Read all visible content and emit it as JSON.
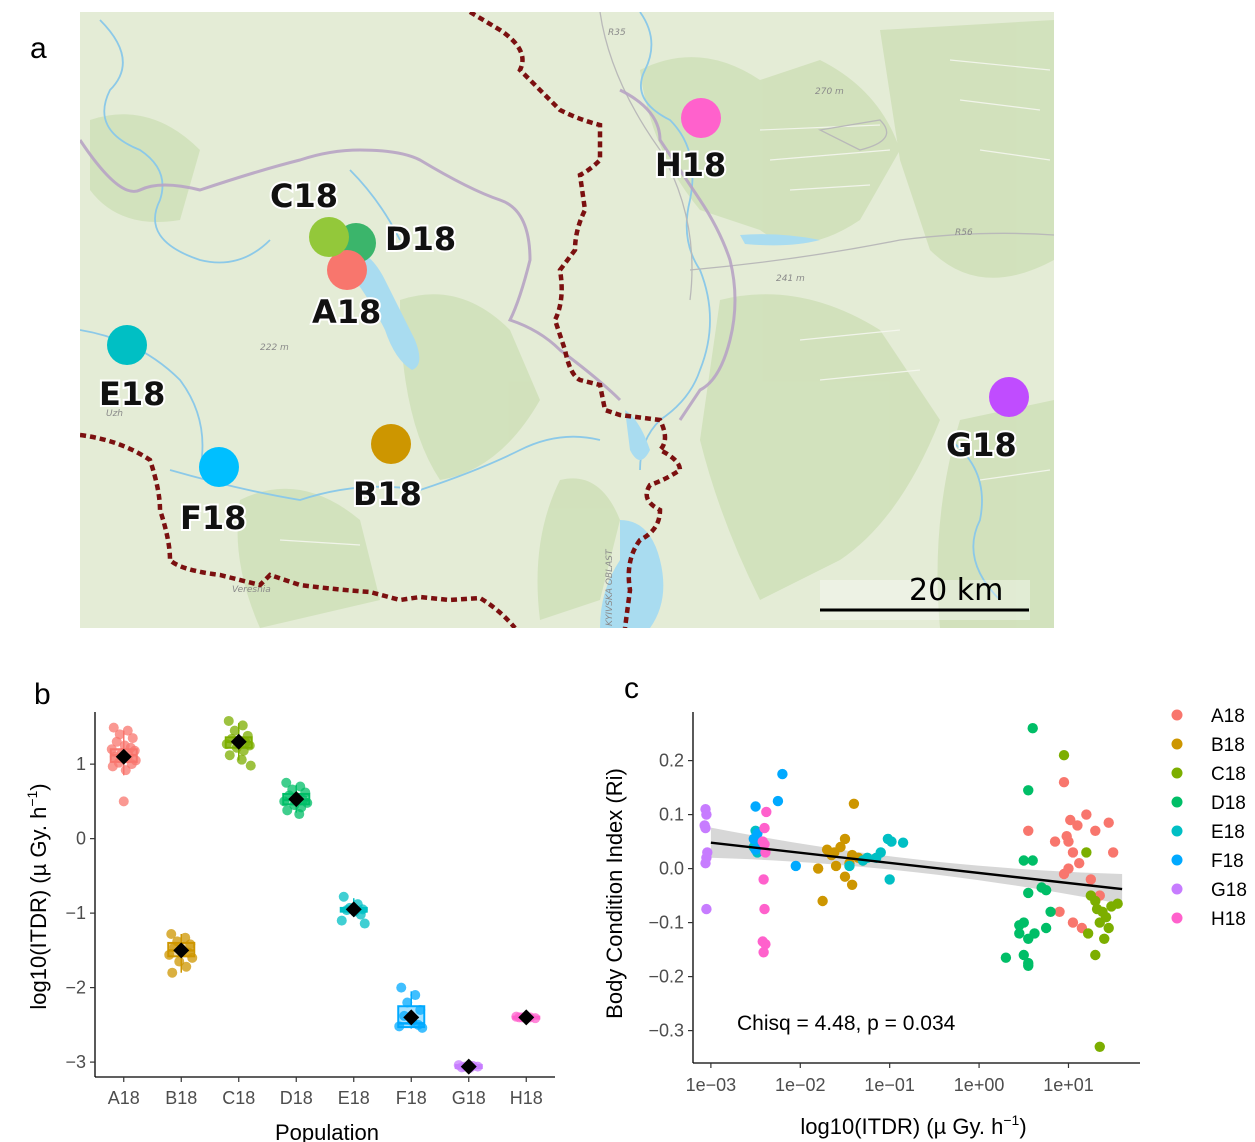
{
  "colors": {
    "A18": "#F8766D",
    "B18": "#CD9600",
    "C18": "#7CAE00",
    "D18": "#00BE67",
    "E18": "#00BFC4",
    "F18": "#00A9FF",
    "G18": "#C77CFF",
    "H18": "#FF61CC",
    "map_background": "#e4ecd6",
    "border": "#7b1010",
    "water": "#a9dcf0"
  },
  "panel_a": {
    "letter": "a",
    "sites": [
      {
        "name": "A18",
        "label": "A18"
      },
      {
        "name": "B18",
        "label": "B18"
      },
      {
        "name": "C18",
        "label": "C18"
      },
      {
        "name": "D18",
        "label": "D18"
      },
      {
        "name": "E18",
        "label": "E18"
      },
      {
        "name": "F18",
        "label": "F18"
      },
      {
        "name": "G18",
        "label": "G18"
      },
      {
        "name": "H18",
        "label": "H18"
      }
    ],
    "scale_bar_label": "20 km",
    "map_text": [
      "270 m",
      "241 m",
      "222 m",
      "R56",
      "R35",
      "Uzh",
      "Veresnia",
      "KYIVSKA OBLAST"
    ]
  },
  "chart_data": [
    {
      "type": "box",
      "panel": "b",
      "xlabel": "Population",
      "ylabel": "log10(ITDR) (µGy. h-1)",
      "ylabel_main": "log10(ITDR) (",
      "ylabel_unit": "µ Gy. h",
      "ylabel_sup": "−1",
      "ylabel_end": ")",
      "categories": [
        "A18",
        "B18",
        "C18",
        "D18",
        "E18",
        "F18",
        "G18",
        "H18"
      ],
      "ylim": [
        -3.2,
        1.7
      ],
      "yticks": [
        1,
        0,
        -1,
        -2,
        -3
      ],
      "ytick_labels": [
        "1",
        "0",
        "−1",
        "−2",
        "−3"
      ],
      "means": [
        1.1,
        -1.5,
        1.3,
        0.53,
        -0.95,
        -2.4,
        -3.06,
        -2.4
      ],
      "boxes": [
        {
          "q1": 1.03,
          "median": 1.12,
          "q3": 1.2,
          "lo": 0.85,
          "hi": 1.45
        },
        {
          "q1": -1.58,
          "median": -1.5,
          "q3": -1.4,
          "lo": -1.8,
          "hi": -1.28
        },
        {
          "q1": 1.22,
          "median": 1.3,
          "q3": 1.36,
          "lo": 1.05,
          "hi": 1.55
        },
        {
          "q1": 0.46,
          "median": 0.52,
          "q3": 0.6,
          "lo": 0.35,
          "hi": 0.72
        },
        {
          "q1": -0.98,
          "median": -0.95,
          "q3": -0.93,
          "lo": -1.05,
          "hi": -0.8
        },
        {
          "q1": -2.53,
          "median": -2.48,
          "q3": -2.25,
          "lo": -2.55,
          "hi": -2.05
        },
        {
          "q1": -3.08,
          "median": -3.06,
          "q3": -3.04,
          "lo": -3.09,
          "hi": -3.03
        },
        {
          "q1": -2.41,
          "median": -2.4,
          "q3": -2.39,
          "lo": -2.42,
          "hi": -2.38
        }
      ],
      "points": [
        [
          1.49,
          1.45,
          1.4,
          1.35,
          1.3,
          1.25,
          1.22,
          1.2,
          1.18,
          1.15,
          1.12,
          1.1,
          1.08,
          1.05,
          1.02,
          1.0,
          0.97,
          0.92,
          0.5
        ],
        [
          -1.28,
          -1.33,
          -1.38,
          -1.42,
          -1.46,
          -1.5,
          -1.53,
          -1.56,
          -1.6,
          -1.65,
          -1.72,
          -1.8
        ],
        [
          1.58,
          1.52,
          1.45,
          1.38,
          1.34,
          1.31,
          1.29,
          1.27,
          1.25,
          1.22,
          1.18,
          1.12,
          1.06,
          0.98
        ],
        [
          0.75,
          0.7,
          0.66,
          0.62,
          0.58,
          0.55,
          0.52,
          0.5,
          0.48,
          0.45,
          0.42,
          0.38,
          0.33
        ],
        [
          -0.78,
          -0.88,
          -0.93,
          -0.95,
          -0.96,
          -0.98,
          -1.02,
          -1.1,
          -1.14
        ],
        [
          -2.0,
          -2.1,
          -2.2,
          -2.3,
          -2.38,
          -2.45,
          -2.5,
          -2.52,
          -2.54
        ],
        [
          -3.04,
          -3.05,
          -3.06,
          -3.06,
          -3.07,
          -3.08
        ],
        [
          -2.39,
          -2.4,
          -2.4,
          -2.41,
          -2.4
        ]
      ],
      "grid": false
    },
    {
      "type": "scatter",
      "panel": "c",
      "xlabel": "log10(ITDR) (µGy. h-1)",
      "xlabel_main": "log10(ITDR) (",
      "xlabel_unit": "µ Gy. h",
      "xlabel_sup": "−1",
      "xlabel_end": ")",
      "ylabel": "Body Condition Index (Ri)",
      "x_scale": "log10",
      "xlim_log10": [
        -3.2,
        1.8
      ],
      "ylim": [
        -0.36,
        0.29
      ],
      "xticks_log10": [
        -3,
        -2,
        -1,
        0,
        1
      ],
      "xtick_labels": [
        "1e−03",
        "1e−02",
        "1e−01",
        "1e+00",
        "1e+01"
      ],
      "yticks": [
        0.2,
        0.1,
        0.0,
        -0.1,
        -0.2,
        -0.3
      ],
      "ytick_labels": [
        "0.2",
        "0.1",
        "0.0",
        "−0.1",
        "−0.2",
        "−0.3"
      ],
      "annotation": "Chisq = 4.48, p = 0.034",
      "legend_position": "right",
      "regression": {
        "x_log10": [
          -3.0,
          1.6
        ],
        "y": [
          0.048,
          -0.038
        ],
        "ci_halfwidth_ends": 0.028,
        "ci_halfwidth_mid": 0.012
      },
      "series": [
        {
          "name": "A18",
          "points": [
            [
              0.55,
              0.07
            ],
            [
              0.85,
              0.05
            ],
            [
              0.95,
              0.16
            ],
            [
              1.0,
              0.05
            ],
            [
              1.05,
              0.03
            ],
            [
              1.12,
              0.01
            ],
            [
              1.2,
              0.1
            ],
            [
              1.0,
              0.0
            ],
            [
              0.95,
              -0.01
            ],
            [
              1.1,
              0.08
            ],
            [
              1.3,
              0.07
            ],
            [
              1.45,
              0.085
            ],
            [
              1.5,
              0.03
            ],
            [
              0.9,
              -0.08
            ],
            [
              1.05,
              -0.1
            ],
            [
              1.25,
              -0.02
            ],
            [
              1.35,
              -0.05
            ],
            [
              1.15,
              -0.11
            ],
            [
              1.02,
              0.09
            ],
            [
              0.98,
              0.06
            ]
          ]
        },
        {
          "name": "B18",
          "points": [
            [
              -1.4,
              0.12
            ],
            [
              -1.5,
              0.055
            ],
            [
              -1.55,
              0.04
            ],
            [
              -1.7,
              0.035
            ],
            [
              -1.62,
              0.03
            ],
            [
              -1.42,
              0.025
            ],
            [
              -1.35,
              0.02
            ],
            [
              -1.3,
              0.015
            ],
            [
              -1.45,
              0.01
            ],
            [
              -1.6,
              0.005
            ],
            [
              -1.8,
              0.0
            ],
            [
              -1.5,
              -0.015
            ],
            [
              -1.42,
              -0.03
            ],
            [
              -1.75,
              -0.06
            ],
            [
              -1.65,
              0.025
            ]
          ]
        },
        {
          "name": "C18",
          "points": [
            [
              0.95,
              0.21
            ],
            [
              1.2,
              0.03
            ],
            [
              1.25,
              -0.05
            ],
            [
              1.3,
              -0.06
            ],
            [
              1.32,
              -0.075
            ],
            [
              1.38,
              -0.08
            ],
            [
              1.42,
              -0.09
            ],
            [
              1.48,
              -0.07
            ],
            [
              1.55,
              -0.065
            ],
            [
              1.35,
              -0.1
            ],
            [
              1.4,
              -0.13
            ],
            [
              1.22,
              -0.12
            ],
            [
              1.3,
              -0.16
            ],
            [
              1.35,
              -0.33
            ],
            [
              1.45,
              -0.11
            ]
          ]
        },
        {
          "name": "D18",
          "points": [
            [
              0.6,
              0.26
            ],
            [
              0.55,
              0.145
            ],
            [
              0.5,
              0.015
            ],
            [
              0.6,
              0.015
            ],
            [
              0.7,
              -0.035
            ],
            [
              0.75,
              -0.04
            ],
            [
              0.55,
              -0.045
            ],
            [
              0.8,
              -0.08
            ],
            [
              0.45,
              -0.105
            ],
            [
              0.5,
              -0.1
            ],
            [
              0.62,
              -0.12
            ],
            [
              0.55,
              -0.13
            ],
            [
              0.75,
              -0.11
            ],
            [
              0.45,
              -0.12
            ],
            [
              0.5,
              -0.16
            ],
            [
              0.55,
              -0.175
            ],
            [
              0.3,
              -0.165
            ],
            [
              0.55,
              -0.18
            ]
          ]
        },
        {
          "name": "E18",
          "points": [
            [
              -2.5,
              0.07
            ],
            [
              -2.45,
              0.05
            ],
            [
              -2.52,
              0.04
            ],
            [
              -2.48,
              0.03
            ],
            [
              -1.02,
              0.055
            ],
            [
              -0.98,
              0.05
            ],
            [
              -0.85,
              0.048
            ],
            [
              -1.1,
              0.03
            ],
            [
              -1.15,
              0.02
            ],
            [
              -1.25,
              0.02
            ],
            [
              -1.0,
              -0.02
            ],
            [
              -1.45,
              0.005
            ],
            [
              -1.3,
              0.015
            ]
          ]
        },
        {
          "name": "F18",
          "points": [
            [
              -2.2,
              0.175
            ],
            [
              -2.5,
              0.115
            ],
            [
              -2.25,
              0.125
            ],
            [
              -2.48,
              0.065
            ],
            [
              -2.52,
              0.055
            ],
            [
              -2.45,
              0.04
            ],
            [
              -2.5,
              0.035
            ],
            [
              -2.05,
              0.005
            ]
          ]
        },
        {
          "name": "G18",
          "points": [
            [
              -3.06,
              0.11
            ],
            [
              -3.05,
              0.1
            ],
            [
              -3.07,
              0.08
            ],
            [
              -3.06,
              0.075
            ],
            [
              -3.04,
              0.03
            ],
            [
              -3.05,
              0.02
            ],
            [
              -3.06,
              0.01
            ],
            [
              -3.05,
              -0.075
            ]
          ]
        },
        {
          "name": "H18",
          "points": [
            [
              -2.38,
              0.105
            ],
            [
              -2.4,
              0.075
            ],
            [
              -2.42,
              0.05
            ],
            [
              -2.39,
              0.03
            ],
            [
              -2.41,
              -0.02
            ],
            [
              -2.4,
              -0.075
            ],
            [
              -2.42,
              -0.135
            ],
            [
              -2.39,
              -0.14
            ],
            [
              -2.41,
              -0.155
            ],
            [
              -2.4,
              0.045
            ]
          ]
        }
      ]
    }
  ]
}
